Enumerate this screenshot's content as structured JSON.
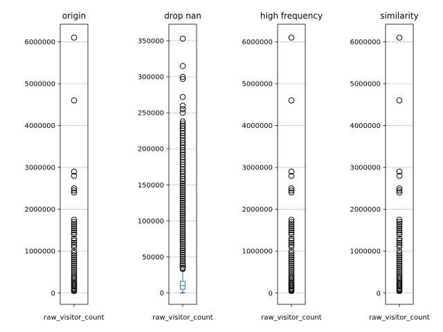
{
  "chart_data": [
    {
      "type": "box",
      "title": "origin",
      "categories": [
        "raw_visitor_count"
      ],
      "ylim": [
        -270000,
        6420000
      ],
      "yticks": [
        0,
        1000000,
        2000000,
        3000000,
        4000000,
        5000000,
        6000000
      ],
      "grid": "y",
      "box": {
        "whislo": 0,
        "q1": 0,
        "med": 2000,
        "q3": 12000,
        "whishi": 30000
      },
      "outliers": [
        6100000,
        4600000,
        2900000,
        2800000,
        2500000,
        2450000,
        2400000,
        1750000,
        1700000,
        1650000,
        1600000,
        1550000,
        1500000,
        1450000,
        1400000,
        1300000,
        1250000,
        1200000,
        1150000,
        1100000,
        1000000,
        950000,
        900000,
        850000,
        800000,
        750000,
        700000,
        650000,
        600000,
        550000,
        500000,
        450000,
        400000,
        360000,
        320000,
        280000,
        250000,
        220000,
        190000,
        160000,
        130000,
        100000,
        70000,
        50000
      ]
    },
    {
      "type": "box",
      "title": "drop nan",
      "categories": [
        "raw_visitor_count"
      ],
      "ylim": [
        -16000,
        373000
      ],
      "yticks": [
        0,
        50000,
        100000,
        150000,
        200000,
        250000,
        300000,
        350000
      ],
      "grid": "y",
      "box": {
        "whislo": 0,
        "q1": 5000,
        "med": 10000,
        "q3": 16000,
        "whishi": 31000
      },
      "outliers": [
        353000,
        315000,
        300000,
        297000,
        272000,
        260000,
        255000,
        250000,
        238000,
        235000,
        232000,
        228000,
        225000,
        222000,
        218000,
        215000,
        212000,
        208000,
        205000,
        202000,
        198000,
        195000,
        192000,
        188000,
        185000,
        182000,
        178000,
        175000,
        172000,
        168000,
        165000,
        162000,
        158000,
        155000,
        152000,
        149000,
        146000,
        143000,
        140000,
        137000,
        134000,
        131000,
        128000,
        125000,
        122000,
        119000,
        116000,
        113000,
        110000,
        107000,
        104000,
        101000,
        98000,
        95000,
        92000,
        89000,
        86000,
        83000,
        80000,
        77000,
        74000,
        71000,
        68000,
        65000,
        62000,
        59000,
        56000,
        53000,
        50000,
        47000,
        44000,
        41000,
        38000,
        35000,
        33000
      ]
    },
    {
      "type": "box",
      "title": "high frequency",
      "categories": [
        "raw_visitor_count"
      ],
      "ylim": [
        -270000,
        6420000
      ],
      "yticks": [
        0,
        1000000,
        2000000,
        3000000,
        4000000,
        5000000,
        6000000
      ],
      "grid": "y",
      "box": {
        "whislo": 0,
        "q1": 0,
        "med": 2000,
        "q3": 12000,
        "whishi": 30000
      },
      "outliers": [
        6100000,
        4600000,
        2900000,
        2800000,
        2500000,
        2450000,
        2400000,
        1750000,
        1700000,
        1650000,
        1600000,
        1550000,
        1500000,
        1450000,
        1400000,
        1300000,
        1250000,
        1200000,
        1150000,
        1100000,
        1000000,
        950000,
        900000,
        850000,
        800000,
        750000,
        700000,
        650000,
        600000,
        550000,
        500000,
        450000,
        400000,
        360000,
        320000,
        280000,
        250000,
        220000,
        190000,
        160000,
        130000,
        100000,
        70000,
        50000
      ]
    },
    {
      "type": "box",
      "title": "similarity",
      "categories": [
        "raw_visitor_count"
      ],
      "ylim": [
        -270000,
        6420000
      ],
      "yticks": [
        0,
        1000000,
        2000000,
        3000000,
        4000000,
        5000000,
        6000000
      ],
      "grid": "y",
      "box": {
        "whislo": 0,
        "q1": 0,
        "med": 2000,
        "q3": 12000,
        "whishi": 30000
      },
      "outliers": [
        6100000,
        4600000,
        2900000,
        2800000,
        2500000,
        2450000,
        2400000,
        1750000,
        1700000,
        1650000,
        1600000,
        1550000,
        1500000,
        1450000,
        1400000,
        1300000,
        1250000,
        1200000,
        1150000,
        1100000,
        1000000,
        950000,
        900000,
        850000,
        800000,
        750000,
        700000,
        650000,
        600000,
        550000,
        500000,
        450000,
        400000,
        360000,
        320000,
        280000,
        250000,
        220000,
        190000,
        160000,
        130000,
        100000,
        70000,
        50000
      ]
    }
  ],
  "colors": {
    "box": "#1f77b4",
    "median": "#2ca02c",
    "grid": "#b0b0b0",
    "axis": "#000000"
  }
}
